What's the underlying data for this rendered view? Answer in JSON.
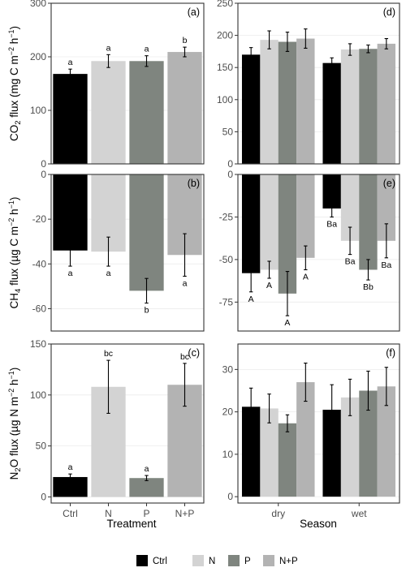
{
  "figure": {
    "legend": [
      {
        "label": "Ctrl",
        "color": "#000000"
      },
      {
        "label": "N",
        "color": "#d3d3d3"
      },
      {
        "label": "P",
        "color": "#7f857f"
      },
      {
        "label": "N+P",
        "color": "#b3b3b3"
      }
    ],
    "x_titles": {
      "left": "Treatment",
      "right": "Season"
    }
  },
  "chart_data": [
    {
      "panel": "(a)",
      "type": "bar",
      "xlabel": "",
      "ylabel": {
        "pre": "CO",
        "sub": "2",
        "mid": " flux (mg C m",
        "sup1": "−2",
        "mid2": " h",
        "sup2": "−1",
        "post": ")"
      },
      "categories": [
        "Ctrl",
        "N",
        "P",
        "N+P"
      ],
      "values": [
        168,
        192,
        192,
        209
      ],
      "errors": [
        9,
        12,
        10,
        9
      ],
      "letters": [
        "a",
        "a",
        "a",
        "b"
      ],
      "ylim": [
        0,
        300
      ],
      "yticks": [
        0,
        100,
        200,
        300
      ]
    },
    {
      "panel": "(d)",
      "type": "bar",
      "xlabel": "",
      "categories": [
        "dry",
        "wet"
      ],
      "series": [
        {
          "name": "Ctrl",
          "values": [
            170,
            157
          ],
          "errors": [
            11,
            8
          ]
        },
        {
          "name": "N",
          "values": [
            193,
            178
          ],
          "errors": [
            14,
            9
          ]
        },
        {
          "name": "P",
          "values": [
            190,
            179
          ],
          "errors": [
            15,
            6
          ]
        },
        {
          "name": "N+P",
          "values": [
            195,
            187
          ],
          "errors": [
            15,
            8
          ]
        }
      ],
      "ylim": [
        0,
        250
      ],
      "yticks": [
        0,
        50,
        100,
        150,
        200,
        250
      ]
    },
    {
      "panel": "(b)",
      "type": "bar",
      "xlabel": "",
      "ylabel": {
        "pre": "CH",
        "sub": "4",
        "mid": " flux (µg C m",
        "sup1": "−2",
        "mid2": " h",
        "sup2": "−1",
        "post": ")"
      },
      "categories": [
        "Ctrl",
        "N",
        "P",
        "N+P"
      ],
      "values": [
        -34,
        -34.5,
        -52,
        -36
      ],
      "errors": [
        7,
        6.5,
        5.5,
        9.5
      ],
      "letters": [
        "a",
        "a",
        "b",
        "a"
      ],
      "ylim": [
        -70,
        0
      ],
      "yticks": [
        0,
        -20,
        -40,
        -60
      ]
    },
    {
      "panel": "(e)",
      "type": "bar",
      "xlabel": "",
      "categories": [
        "dry",
        "wet"
      ],
      "series": [
        {
          "name": "Ctrl",
          "values": [
            -58,
            -20
          ],
          "errors": [
            11,
            5
          ]
        },
        {
          "name": "N",
          "values": [
            -56,
            -39
          ],
          "errors": [
            5,
            8
          ]
        },
        {
          "name": "P",
          "values": [
            -70,
            -56
          ],
          "errors": [
            13,
            6
          ]
        },
        {
          "name": "N+P",
          "values": [
            -49,
            -39
          ],
          "errors": [
            7,
            10
          ]
        }
      ],
      "letters": [
        [
          "A",
          "A",
          "A",
          "A"
        ],
        [
          "Ba",
          "Ba",
          "Bb",
          "Ba"
        ]
      ],
      "ylim": [
        -92,
        0
      ],
      "yticks": [
        0,
        -25,
        -50,
        -75
      ]
    },
    {
      "panel": "(c)",
      "type": "bar",
      "xlabel": "Treatment",
      "ylabel": {
        "pre": "N",
        "sub": "2",
        "mid": "O flux (µg N m",
        "sup1": "−2",
        "mid2": " h",
        "sup2": "−1",
        "post": ")"
      },
      "categories": [
        "Ctrl",
        "N",
        "P",
        "N+P"
      ],
      "values": [
        19.5,
        108,
        18.5,
        110
      ],
      "errors": [
        3,
        26,
        2.5,
        21
      ],
      "letters": [
        "a",
        "bc",
        "a",
        "bc"
      ],
      "ylim": [
        -6,
        150
      ],
      "yticks": [
        0,
        50,
        100,
        150
      ]
    },
    {
      "panel": "(f)",
      "type": "bar",
      "xlabel": "Season",
      "categories": [
        "dry",
        "wet"
      ],
      "series": [
        {
          "name": "Ctrl",
          "values": [
            21.2,
            20.5
          ],
          "errors": [
            4.4,
            5.9
          ]
        },
        {
          "name": "N",
          "values": [
            20.8,
            23.4
          ],
          "errors": [
            3.4,
            4.3
          ]
        },
        {
          "name": "P",
          "values": [
            17.3,
            25.0
          ],
          "errors": [
            2.0,
            4.6
          ]
        },
        {
          "name": "N+P",
          "values": [
            27.0,
            26.0
          ],
          "errors": [
            4.5,
            4.5
          ]
        }
      ],
      "ylim": [
        -1.5,
        36
      ],
      "yticks": [
        0,
        10,
        20,
        30
      ]
    }
  ]
}
